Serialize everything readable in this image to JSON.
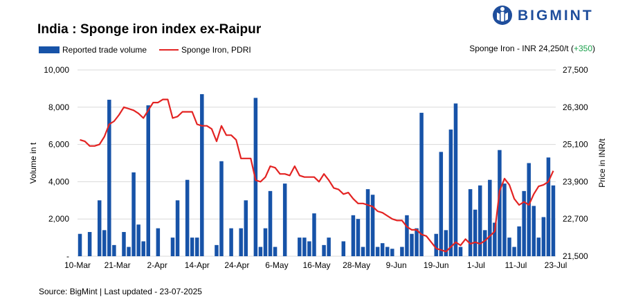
{
  "title": "India : Sponge iron index ex-Raipur",
  "brand": {
    "name": "BIGMINT",
    "color": "#1f4e9c"
  },
  "legend": {
    "bar_label": "Reported trade volume",
    "line_label": "Sponge Iron, PDRI"
  },
  "price_note": {
    "label": "Sponge Iron - INR 24,250/t (",
    "change": "+350",
    "close": ")"
  },
  "source": "Source: BigMint | Last updated - 23-07-2025",
  "colors": {
    "bar": "#1753a8",
    "line": "#e32322",
    "grid": "#d9d9d9",
    "change": "#1aa14b"
  },
  "chart_data": {
    "type": "bar+line",
    "title": "India : Sponge iron index ex-Raipur",
    "x_tick_labels": [
      "10-Mar",
      "21-Mar",
      "2-Apr",
      "14-Apr",
      "24-Apr",
      "6-May",
      "16-May",
      "28-May",
      "9-Jun",
      "19-Jun",
      "1-Jul",
      "11-Jul",
      "23-Jul"
    ],
    "left_axis": {
      "label": "Volume in t",
      "min": 0,
      "max": 10000,
      "ticks": [
        "-",
        "2,000",
        "4,000",
        "6,000",
        "8,000",
        "10,000"
      ]
    },
    "right_axis": {
      "label": "Price in INR/t",
      "min": 21500,
      "max": 27500,
      "ticks": [
        "21,500",
        "22,700",
        "23,900",
        "25,100",
        "26,300",
        "27,500"
      ]
    },
    "grid": "horizontal",
    "legend_position": "top-left",
    "series": [
      {
        "name": "Reported trade volume",
        "kind": "bar",
        "points": [
          [
            0,
            1200
          ],
          [
            2,
            1300
          ],
          [
            4,
            3000
          ],
          [
            5,
            1400
          ],
          [
            6,
            8400
          ],
          [
            7,
            600
          ],
          [
            9,
            1300
          ],
          [
            10,
            500
          ],
          [
            11,
            4500
          ],
          [
            12,
            1700
          ],
          [
            13,
            800
          ],
          [
            14,
            8100
          ],
          [
            16,
            1500
          ],
          [
            19,
            1000
          ],
          [
            20,
            3000
          ],
          [
            22,
            4100
          ],
          [
            23,
            1000
          ],
          [
            24,
            1000
          ],
          [
            25,
            8700
          ],
          [
            28,
            600
          ],
          [
            29,
            5100
          ],
          [
            31,
            1500
          ],
          [
            33,
            1500
          ],
          [
            34,
            3000
          ],
          [
            36,
            8500
          ],
          [
            37,
            500
          ],
          [
            38,
            1500
          ],
          [
            39,
            3500
          ],
          [
            40,
            500
          ],
          [
            42,
            3900
          ],
          [
            45,
            1000
          ],
          [
            46,
            1000
          ],
          [
            47,
            800
          ],
          [
            48,
            2300
          ],
          [
            50,
            600
          ],
          [
            51,
            1000
          ],
          [
            54,
            800
          ],
          [
            56,
            2200
          ],
          [
            57,
            2000
          ],
          [
            58,
            500
          ],
          [
            59,
            3600
          ],
          [
            60,
            3300
          ],
          [
            61,
            500
          ],
          [
            62,
            700
          ],
          [
            63,
            500
          ],
          [
            64,
            400
          ],
          [
            66,
            500
          ],
          [
            67,
            2200
          ],
          [
            68,
            1200
          ],
          [
            69,
            1500
          ],
          [
            70,
            7700
          ],
          [
            73,
            1200
          ],
          [
            74,
            5600
          ],
          [
            75,
            1400
          ],
          [
            76,
            6800
          ],
          [
            77,
            8200
          ],
          [
            78,
            500
          ],
          [
            80,
            3600
          ],
          [
            81,
            2500
          ],
          [
            82,
            3800
          ],
          [
            83,
            1400
          ],
          [
            84,
            4100
          ],
          [
            85,
            1800
          ],
          [
            86,
            5700
          ],
          [
            87,
            3900
          ],
          [
            88,
            1000
          ],
          [
            89,
            500
          ],
          [
            90,
            1600
          ],
          [
            91,
            3500
          ],
          [
            92,
            5000
          ],
          [
            93,
            2700
          ],
          [
            94,
            1000
          ],
          [
            95,
            2100
          ],
          [
            96,
            5300
          ],
          [
            97,
            3800
          ]
        ]
      },
      {
        "name": "Sponge Iron, PDRI",
        "kind": "line",
        "points": [
          [
            0,
            25250
          ],
          [
            1,
            25200
          ],
          [
            2,
            25050
          ],
          [
            3,
            25050
          ],
          [
            4,
            25100
          ],
          [
            5,
            25350
          ],
          [
            6,
            25750
          ],
          [
            7,
            25850
          ],
          [
            8,
            26050
          ],
          [
            9,
            26300
          ],
          [
            10,
            26250
          ],
          [
            11,
            26200
          ],
          [
            12,
            26100
          ],
          [
            13,
            25950
          ],
          [
            14,
            26200
          ],
          [
            15,
            26450
          ],
          [
            16,
            26450
          ],
          [
            17,
            26550
          ],
          [
            18,
            26550
          ],
          [
            19,
            25950
          ],
          [
            20,
            26000
          ],
          [
            21,
            26150
          ],
          [
            22,
            26150
          ],
          [
            23,
            26150
          ],
          [
            24,
            25750
          ],
          [
            25,
            25700
          ],
          [
            26,
            25700
          ],
          [
            27,
            25600
          ],
          [
            28,
            25200
          ],
          [
            29,
            25700
          ],
          [
            30,
            25400
          ],
          [
            31,
            25400
          ],
          [
            32,
            25250
          ],
          [
            33,
            24650
          ],
          [
            34,
            24650
          ],
          [
            35,
            24650
          ],
          [
            36,
            23950
          ],
          [
            37,
            23900
          ],
          [
            38,
            24050
          ],
          [
            39,
            24400
          ],
          [
            40,
            24350
          ],
          [
            41,
            24150
          ],
          [
            42,
            24150
          ],
          [
            43,
            24100
          ],
          [
            44,
            24400
          ],
          [
            45,
            24100
          ],
          [
            46,
            24050
          ],
          [
            47,
            24050
          ],
          [
            48,
            24050
          ],
          [
            49,
            23900
          ],
          [
            50,
            24150
          ],
          [
            51,
            23950
          ],
          [
            52,
            23700
          ],
          [
            53,
            23650
          ],
          [
            54,
            23500
          ],
          [
            55,
            23550
          ],
          [
            56,
            23350
          ],
          [
            57,
            23200
          ],
          [
            58,
            23200
          ],
          [
            59,
            23150
          ],
          [
            60,
            23100
          ],
          [
            61,
            22950
          ],
          [
            62,
            22900
          ],
          [
            63,
            22800
          ],
          [
            64,
            22700
          ],
          [
            65,
            22650
          ],
          [
            66,
            22650
          ],
          [
            67,
            22450
          ],
          [
            68,
            22350
          ],
          [
            69,
            22350
          ],
          [
            70,
            22200
          ],
          [
            71,
            22150
          ],
          [
            72,
            21950
          ],
          [
            73,
            21750
          ],
          [
            74,
            21700
          ],
          [
            75,
            21650
          ],
          [
            76,
            21800
          ],
          [
            77,
            21950
          ],
          [
            78,
            21850
          ],
          [
            79,
            22050
          ],
          [
            80,
            21900
          ],
          [
            81,
            21950
          ],
          [
            82,
            21900
          ],
          [
            83,
            22000
          ],
          [
            84,
            22150
          ],
          [
            85,
            22300
          ],
          [
            86,
            23600
          ],
          [
            87,
            24000
          ],
          [
            88,
            23800
          ],
          [
            89,
            23350
          ],
          [
            90,
            23150
          ],
          [
            91,
            23250
          ],
          [
            92,
            23150
          ],
          [
            93,
            23500
          ],
          [
            94,
            23750
          ],
          [
            95,
            23800
          ],
          [
            96,
            23900
          ],
          [
            97,
            24250
          ]
        ]
      }
    ]
  }
}
